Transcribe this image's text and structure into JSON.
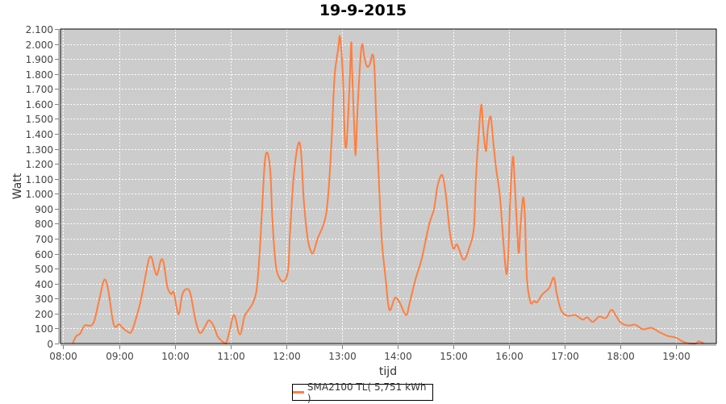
{
  "chart_data": {
    "type": "line",
    "title": "19-9-2015",
    "xlabel": "tijd",
    "ylabel": "Watt",
    "ylim": [
      0,
      2100
    ],
    "xlim": [
      "07:57",
      "19:43"
    ],
    "grid": true,
    "legend_position": "bottom",
    "background_color": "#cccccc",
    "y_ticks": [
      0,
      100,
      200,
      300,
      400,
      500,
      600,
      700,
      800,
      900,
      1000,
      1100,
      1200,
      1300,
      1400,
      1500,
      1600,
      1700,
      1800,
      1900,
      2000,
      2100
    ],
    "y_tick_labels": [
      "0",
      "100",
      "200",
      "300",
      "400",
      "500",
      "600",
      "700",
      "800",
      "900",
      "1.000",
      "1.100",
      "1.200",
      "1.300",
      "1.400",
      "1.500",
      "1.600",
      "1.700",
      "1.800",
      "1.900",
      "2.000",
      "2.100"
    ],
    "x_tick_labels": [
      "08:00",
      "09:00",
      "10:00",
      "11:00",
      "12:00",
      "13:00",
      "14:00",
      "15:00",
      "16:00",
      "17:00",
      "18:00",
      "19:00"
    ],
    "series": [
      {
        "name": "SMA2100 TL( 5,751 kWh )",
        "color": "#ff7f3f",
        "x": [
          "08:10",
          "08:14",
          "08:18",
          "08:23",
          "08:30",
          "08:34",
          "08:39",
          "08:44",
          "08:48",
          "08:53",
          "08:56",
          "09:00",
          "09:03",
          "09:09",
          "09:13",
          "09:17",
          "09:23",
          "09:28",
          "09:32",
          "09:35",
          "09:38",
          "09:41",
          "09:45",
          "09:48",
          "09:52",
          "09:56",
          "09:59",
          "10:04",
          "10:08",
          "10:13",
          "10:17",
          "10:22",
          "10:26",
          "10:29",
          "10:34",
          "10:37",
          "10:42",
          "10:46",
          "10:50",
          "10:55",
          "10:59",
          "11:04",
          "11:10",
          "11:15",
          "11:19",
          "11:24",
          "11:28",
          "11:31",
          "11:34",
          "11:37",
          "11:40",
          "11:43",
          "11:45",
          "11:48",
          "11:51",
          "11:57",
          "12:02",
          "12:04",
          "12:08",
          "12:13",
          "12:16",
          "12:19",
          "12:23",
          "12:26",
          "12:29",
          "12:34",
          "12:39",
          "12:43",
          "12:46",
          "12:49",
          "12:52",
          "12:56",
          "12:58",
          "13:01",
          "13:03",
          "13:05",
          "13:08",
          "13:10",
          "13:11",
          "13:14",
          "13:15",
          "13:17",
          "13:20",
          "13:22",
          "13:24",
          "13:27",
          "13:30",
          "13:33",
          "13:35",
          "13:37",
          "13:40",
          "13:43",
          "13:47",
          "13:51",
          "13:57",
          "14:02",
          "14:09",
          "14:13",
          "14:19",
          "14:26",
          "14:34",
          "14:39",
          "14:43",
          "14:48",
          "14:52",
          "14:56",
          "15:00",
          "15:04",
          "15:11",
          "15:17",
          "15:22",
          "15:24",
          "15:27",
          "15:30",
          "15:32",
          "15:35",
          "15:37",
          "15:40",
          "15:43",
          "15:46",
          "15:50",
          "15:54",
          "15:57",
          "15:59",
          "16:01",
          "16:04",
          "16:06",
          "16:10",
          "16:12",
          "16:15",
          "16:17",
          "16:19",
          "16:23",
          "16:27",
          "16:30",
          "16:36",
          "16:43",
          "16:48",
          "16:51",
          "16:56",
          "17:03",
          "17:11",
          "17:19",
          "17:24",
          "17:30",
          "17:37",
          "17:44",
          "17:50",
          "17:55",
          "18:00",
          "18:08",
          "18:16",
          "18:24",
          "18:33",
          "18:42",
          "18:51",
          "18:59",
          "19:08",
          "19:15",
          "19:21",
          "19:24",
          "19:30"
        ],
        "y": [
          0,
          50,
          65,
          120,
          120,
          165,
          300,
          425,
          370,
          165,
          110,
          130,
          110,
          80,
          75,
          140,
          275,
          435,
          560,
          575,
          500,
          460,
          555,
          540,
          380,
          330,
          340,
          195,
          325,
          365,
          330,
          165,
          80,
          75,
          130,
          155,
          115,
          50,
          20,
          0,
          85,
          190,
          60,
          180,
          220,
          270,
          355,
          570,
          895,
          1215,
          1270,
          1135,
          840,
          570,
          460,
          415,
          490,
          730,
          1110,
          1335,
          1270,
          950,
          705,
          625,
          605,
          705,
          775,
          865,
          1055,
          1380,
          1780,
          1970,
          2045,
          1780,
          1380,
          1335,
          1700,
          2010,
          1810,
          1325,
          1290,
          1595,
          1915,
          2000,
          1915,
          1850,
          1865,
          1930,
          1835,
          1485,
          1055,
          680,
          435,
          225,
          305,
          275,
          190,
          275,
          425,
          570,
          800,
          895,
          1055,
          1125,
          985,
          750,
          635,
          660,
          560,
          640,
          770,
          1070,
          1380,
          1595,
          1430,
          1285,
          1430,
          1515,
          1340,
          1165,
          985,
          660,
          465,
          590,
          950,
          1245,
          1070,
          615,
          770,
          975,
          840,
          445,
          275,
          285,
          275,
          330,
          370,
          440,
          340,
          220,
          185,
          190,
          160,
          175,
          145,
          180,
          170,
          225,
          185,
          140,
          120,
          125,
          95,
          105,
          75,
          50,
          40,
          10,
          0,
          0,
          15,
          0
        ]
      }
    ]
  }
}
